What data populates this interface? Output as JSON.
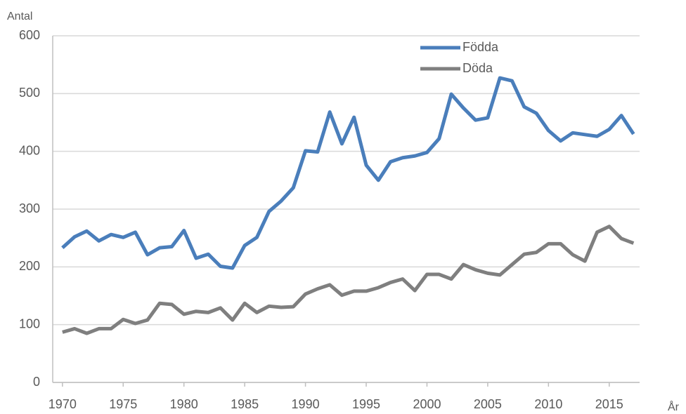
{
  "chart_data": {
    "type": "line",
    "y_label": "Antal",
    "x_label": "År",
    "x": [
      1970,
      1971,
      1972,
      1973,
      1974,
      1975,
      1976,
      1977,
      1978,
      1979,
      1980,
      1981,
      1982,
      1983,
      1984,
      1985,
      1986,
      1987,
      1988,
      1989,
      1990,
      1991,
      1992,
      1993,
      1994,
      1995,
      1996,
      1997,
      1998,
      1999,
      2000,
      2001,
      2002,
      2003,
      2004,
      2005,
      2006,
      2007,
      2008,
      2009,
      2010,
      2011,
      2012,
      2013,
      2014,
      2015,
      2016,
      2017
    ],
    "series": [
      {
        "name": "Födda",
        "color": "#4a7ebb",
        "values": [
          233,
          252,
          262,
          245,
          256,
          251,
          260,
          221,
          233,
          235,
          263,
          215,
          222,
          201,
          198,
          237,
          251,
          296,
          314,
          337,
          401,
          399,
          468,
          413,
          459,
          376,
          350,
          382,
          389,
          392,
          398,
          422,
          499,
          475,
          454,
          458,
          527,
          522,
          477,
          466,
          436,
          418,
          432,
          429,
          426,
          438,
          462,
          430
        ]
      },
      {
        "name": "Döda",
        "color": "#7f7f7f",
        "values": [
          87,
          93,
          85,
          93,
          93,
          109,
          102,
          108,
          137,
          135,
          118,
          123,
          121,
          129,
          108,
          137,
          121,
          132,
          130,
          131,
          153,
          162,
          169,
          151,
          158,
          158,
          164,
          173,
          179,
          159,
          187,
          187,
          179,
          204,
          195,
          189,
          186,
          204,
          222,
          225,
          240,
          240,
          221,
          210,
          260,
          270,
          249,
          241
        ]
      }
    ],
    "xlim": [
      1969.2,
      2017.5
    ],
    "xticks": [
      1970,
      1975,
      1980,
      1985,
      1990,
      1995,
      2000,
      2005,
      2010,
      2015
    ],
    "ylim": [
      0,
      600
    ],
    "yticks": [
      0,
      100,
      200,
      300,
      400,
      500,
      600
    ],
    "grid": true
  }
}
